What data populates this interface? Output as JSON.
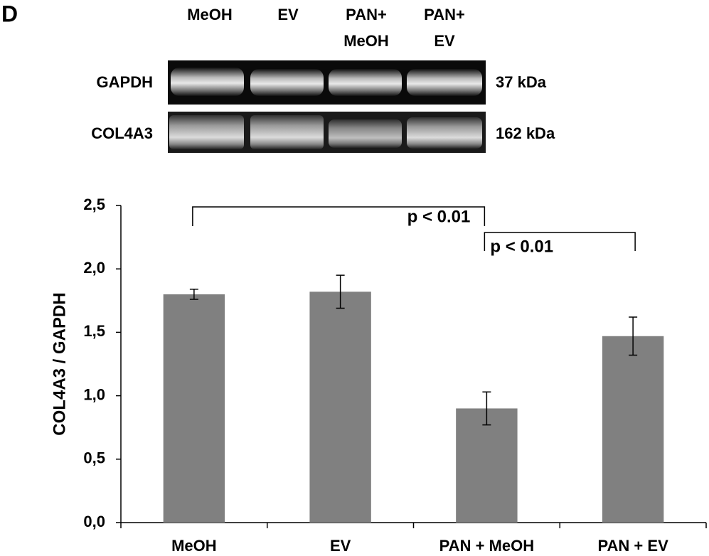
{
  "panel": "D",
  "blot": {
    "lanes": [
      [
        "MeOH"
      ],
      [
        "EV"
      ],
      [
        "PAN+",
        "MeOH"
      ],
      [
        "PAN+",
        "EV"
      ]
    ],
    "rows": [
      {
        "name": "GAPDH",
        "size": "37 kDa"
      },
      {
        "name": "COL4A3",
        "size": "162 kDa"
      }
    ]
  },
  "chart_data": {
    "type": "bar",
    "ylabel": "COL4A3 / GAPDH",
    "categories": [
      "MeOH",
      "EV",
      "PAN + MeOH",
      "PAN + EV"
    ],
    "values": [
      1.8,
      1.82,
      0.9,
      1.47
    ],
    "errors": [
      0.04,
      0.13,
      0.13,
      0.15
    ],
    "color": "#808080",
    "ylim": [
      0,
      2.5
    ],
    "yticks": [
      {
        "value": 0,
        "label": "0,0"
      },
      {
        "value": 0.5,
        "label": "0,5"
      },
      {
        "value": 1,
        "label": "1,0"
      },
      {
        "value": 1.5,
        "label": "1,5"
      },
      {
        "value": 2,
        "label": "2,0"
      },
      {
        "value": 2.5,
        "label": "2,5"
      }
    ],
    "annotations": [
      "p < 0.01",
      "p < 0.01"
    ]
  }
}
